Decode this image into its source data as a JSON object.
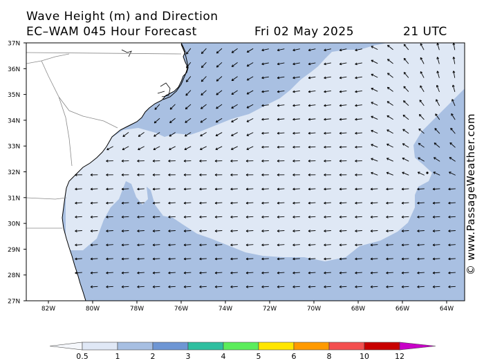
{
  "title": {
    "line1": "Wave Height (m) and Direction",
    "model": "EC–WAM 045 Hour Forecast",
    "date": "Fri 02 May 2025",
    "time": "21 UTC"
  },
  "credit": "© www.PassageWeather.com",
  "axes": {
    "lat_labels": [
      "37N",
      "36N",
      "35N",
      "34N",
      "33N",
      "32N",
      "31N",
      "30N",
      "29N",
      "28N",
      "27N"
    ],
    "lon_labels": [
      "82W",
      "80W",
      "78W",
      "76W",
      "74W",
      "72W",
      "70W",
      "68W",
      "66W",
      "64W"
    ],
    "lat_range": [
      27,
      37
    ],
    "lon_range": [
      -83,
      -63
    ]
  },
  "legend": {
    "labels": [
      "0.5",
      "1",
      "2",
      "3",
      "4",
      "5",
      "6",
      "8",
      "10",
      "12"
    ],
    "colors": [
      "#e0e8f6",
      "#a7bfe2",
      "#6e96d4",
      "#2fbfa0",
      "#5ced5c",
      "#ffe600",
      "#ff9a00",
      "#f34f4f",
      "#c80000",
      "#c800c8"
    ]
  },
  "colors": {
    "wave_0_5_1": "#dfe8f5",
    "wave_1_2": "#a9c0e2",
    "land": "#ffffff",
    "arrow": "#000000"
  },
  "arrow_field": {
    "description": "Wave direction arrows pointing westward, turning north-west near the coast and south-west in the north-east corner"
  }
}
